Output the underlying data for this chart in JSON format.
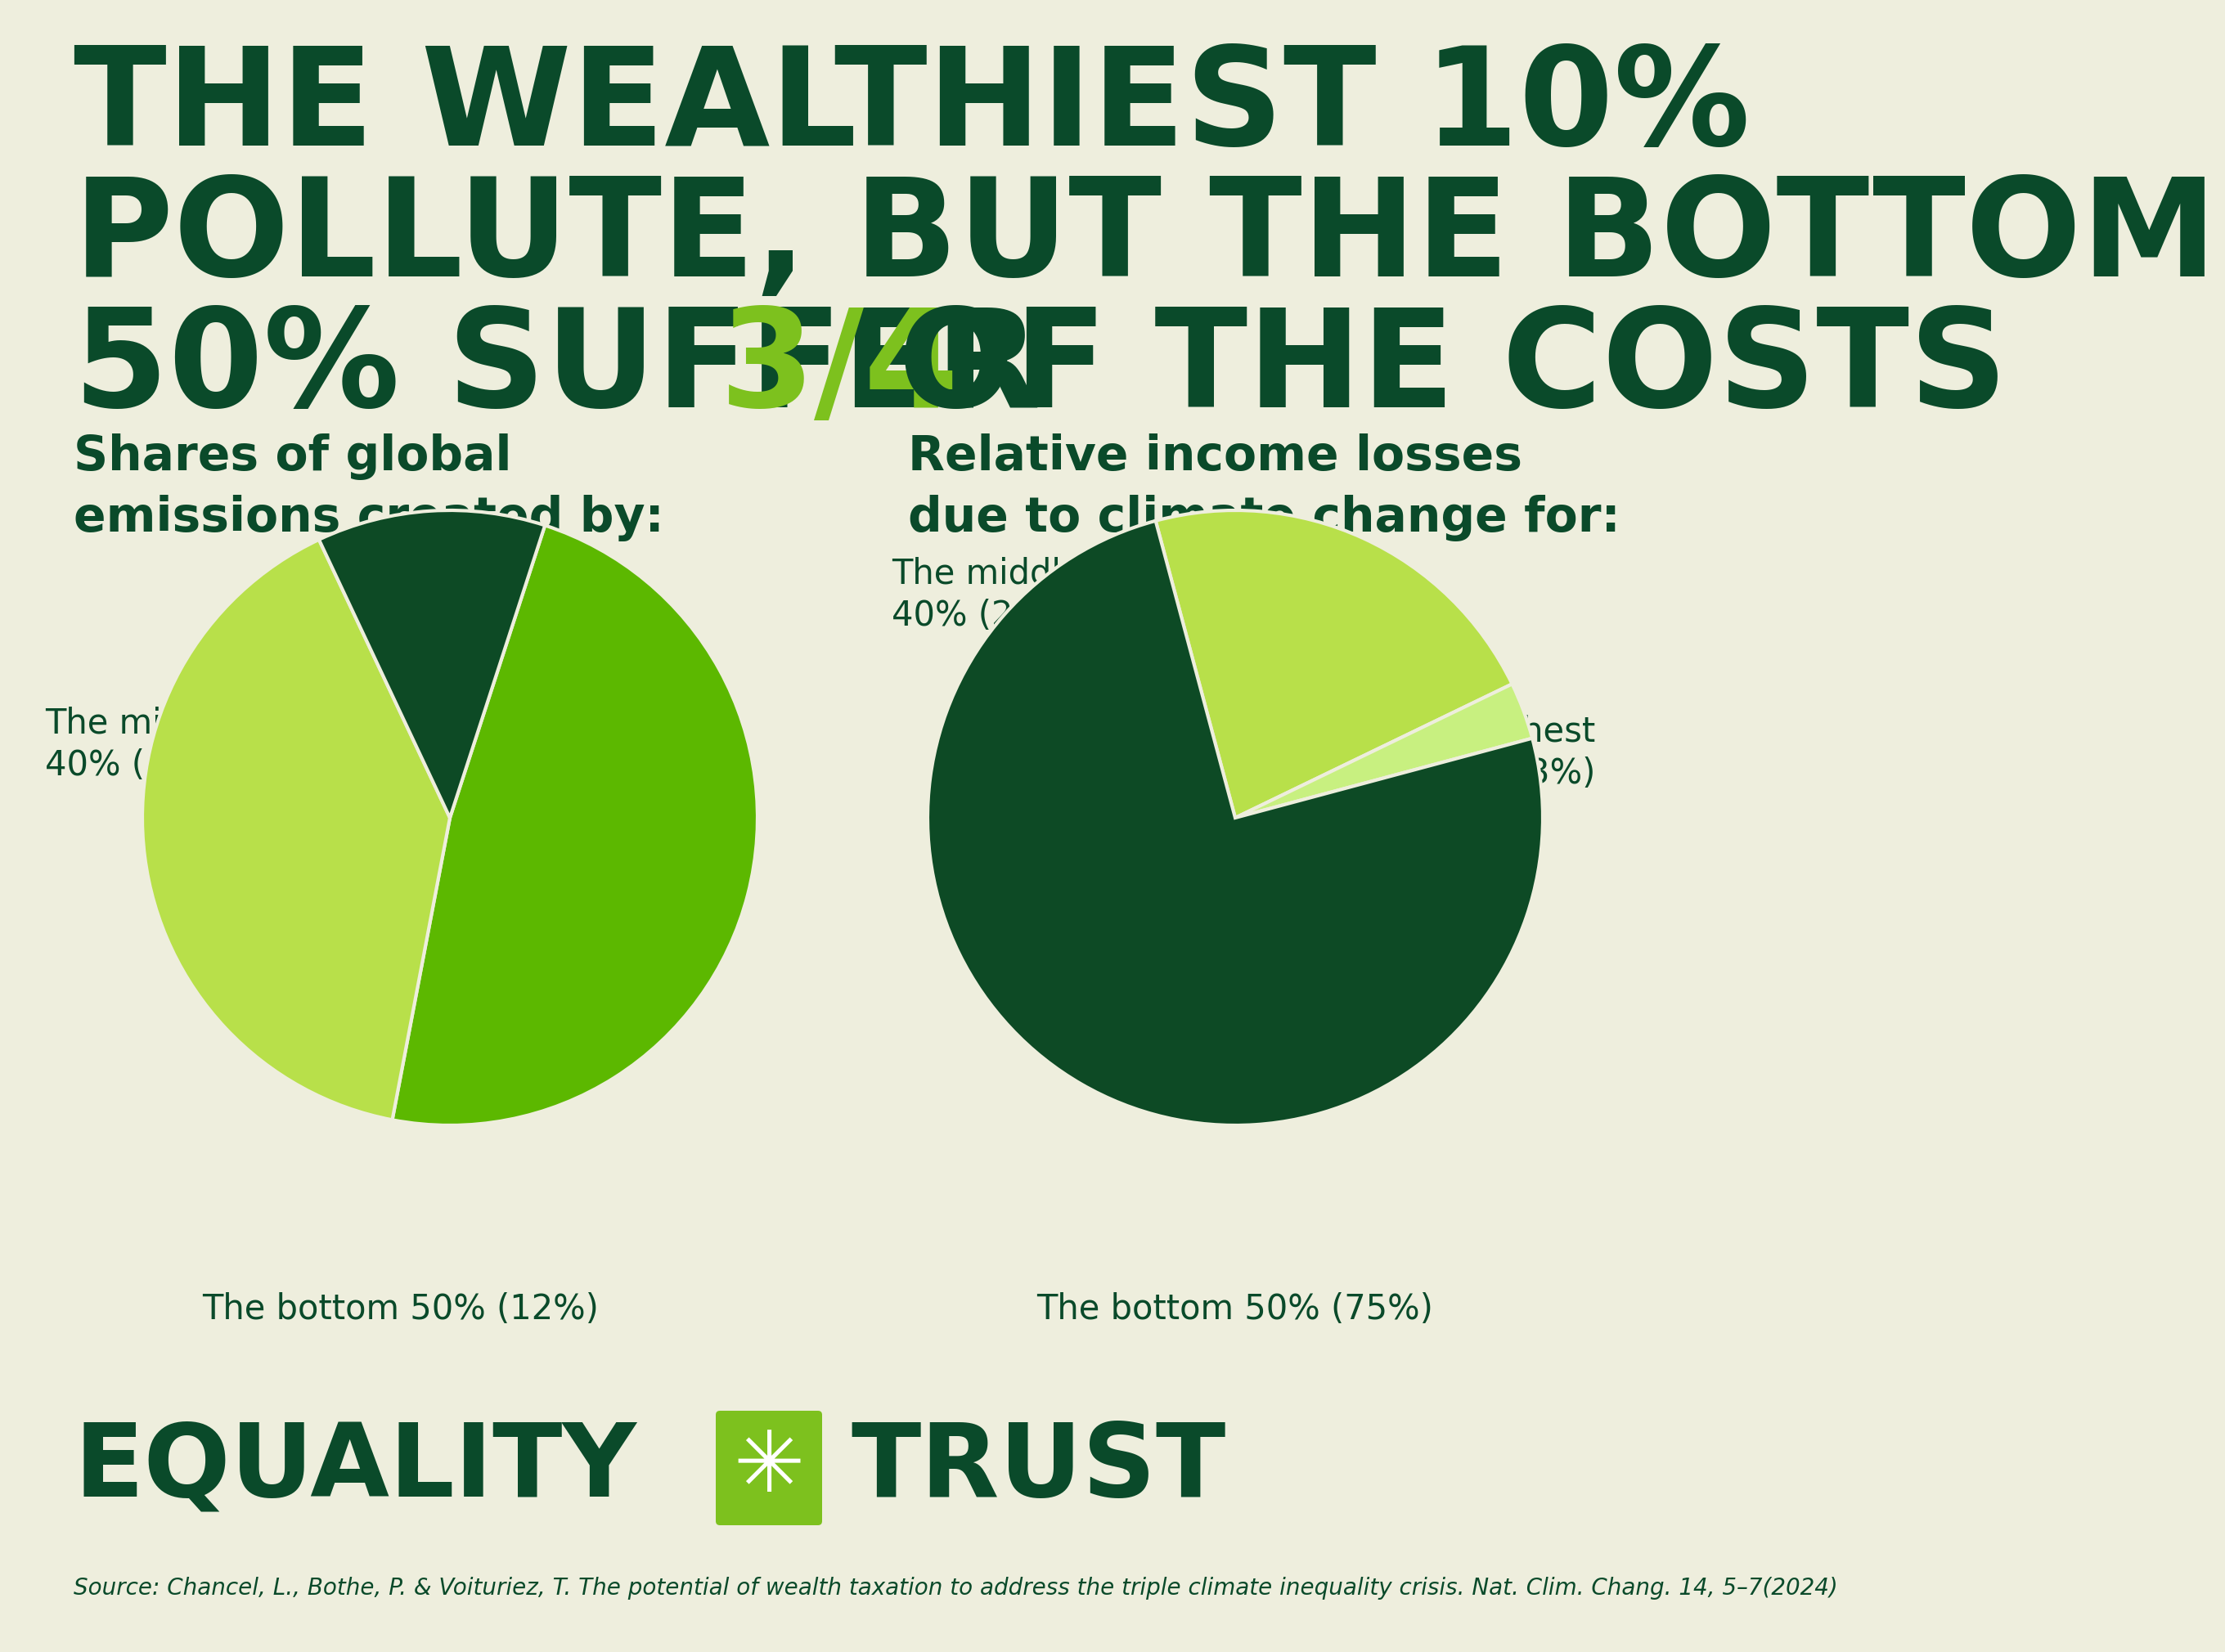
{
  "background_color": "#eeeedd",
  "title_color": "#0a4a2a",
  "highlight_color": "#7dc11e",
  "pie1_values": [
    48,
    40,
    12
  ],
  "pie1_colors": [
    "#5cb800",
    "#b8e04a",
    "#0d4a25"
  ],
  "pie2_values": [
    22,
    3,
    75
  ],
  "pie2_colors": [
    "#b8e04a",
    "#c8f080",
    "#0d4a25"
  ],
  "source_text": "Source: Chancel, L., Bothe, P. & Voituriez, T. The potential of wealth taxation to address the triple climate inequality crisis. Nat. Clim. Chang. 14, 5–7(2024)"
}
